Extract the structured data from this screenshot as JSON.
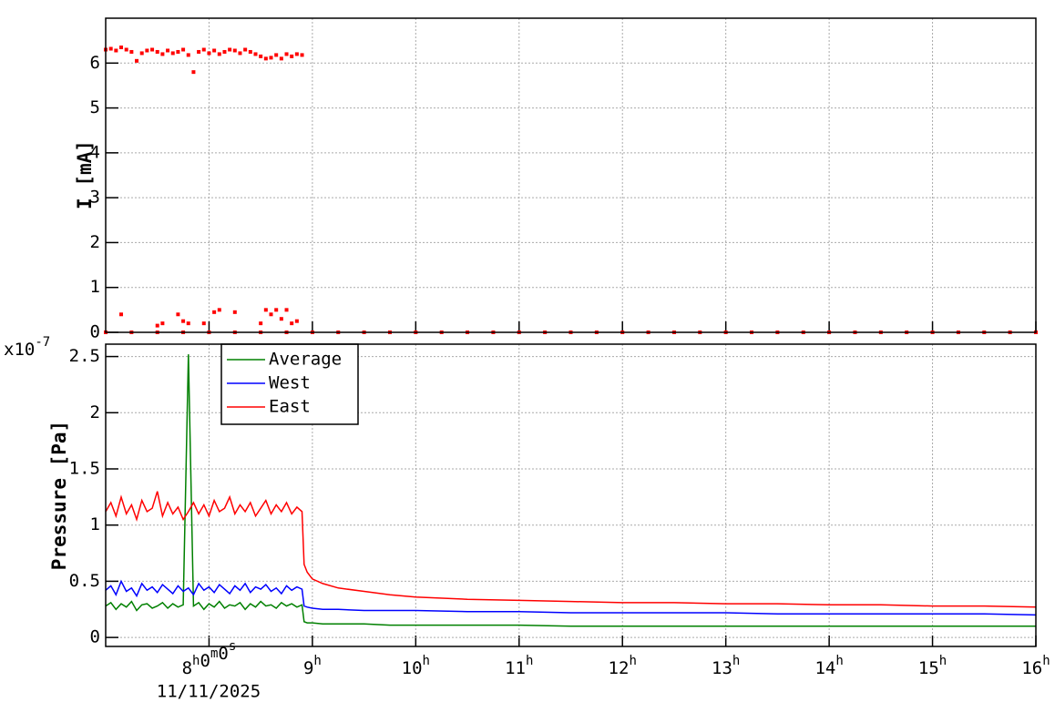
{
  "chart_data": [
    {
      "type": "scatter",
      "y_label": "I [mA]",
      "color": "#ff0000",
      "xlim": [
        7,
        16
      ],
      "xticks": [
        8,
        9,
        10,
        11,
        12,
        13,
        14,
        15,
        16
      ],
      "ylim": [
        0,
        7
      ],
      "yticks": [
        0,
        1,
        2,
        3,
        4,
        5,
        6
      ],
      "grid": true,
      "x": [
        7,
        7.05,
        7.1,
        7.15,
        7.2,
        7.25,
        7.3,
        7.35,
        7.4,
        7.45,
        7.5,
        7.55,
        7.6,
        7.65,
        7.7,
        7.75,
        7.8,
        7.85,
        7.9,
        7.95,
        8,
        8.05,
        8.1,
        8.15,
        8.2,
        8.25,
        8.3,
        8.35,
        8.4,
        8.45,
        8.5,
        8.55,
        8.6,
        8.65,
        8.7,
        8.75,
        8.8,
        8.85,
        8.9,
        7.15,
        7.5,
        7.55,
        7.7,
        7.75,
        7.8,
        7.95,
        8.05,
        8.1,
        8.25,
        8.5,
        8.55,
        8.6,
        8.65,
        8.7,
        8.75,
        8.8,
        8.85,
        7,
        7.25,
        7.5,
        7.75,
        8,
        8.25,
        8.5,
        8.75,
        9,
        9.25,
        9.5,
        9.75,
        10,
        10.25,
        10.5,
        10.75,
        11,
        11.25,
        11.5,
        11.75,
        12,
        12.25,
        12.5,
        12.75,
        13,
        13.25,
        13.5,
        13.75,
        14,
        14.25,
        14.5,
        14.75,
        15,
        15.25,
        15.5,
        15.75,
        16
      ],
      "values": [
        6.3,
        6.32,
        6.28,
        6.35,
        6.3,
        6.25,
        6.05,
        6.22,
        6.28,
        6.3,
        6.25,
        6.2,
        6.28,
        6.22,
        6.25,
        6.3,
        6.18,
        5.8,
        6.25,
        6.3,
        6.22,
        6.28,
        6.2,
        6.25,
        6.3,
        6.28,
        6.22,
        6.3,
        6.25,
        6.2,
        6.15,
        6.1,
        6.12,
        6.18,
        6.1,
        6.2,
        6.15,
        6.2,
        6.18,
        0.4,
        0.15,
        0.2,
        0.4,
        0.25,
        0.2,
        0.2,
        0.45,
        0.5,
        0.45,
        0.2,
        0.5,
        0.4,
        0.5,
        0.3,
        0.5,
        0.2,
        0.25,
        0,
        0,
        0,
        0,
        0,
        0,
        0,
        0,
        0,
        0,
        0,
        0,
        0,
        0,
        0,
        0,
        0,
        0,
        0,
        0,
        0,
        0,
        0,
        0,
        0,
        0,
        0,
        0,
        0,
        0,
        0,
        0,
        0,
        0,
        0,
        0,
        0
      ]
    },
    {
      "type": "line",
      "y_label": "Pressure [Pa]",
      "y_multiplier": "x10-7",
      "date": "11/11/2025",
      "xlim": [
        7,
        16
      ],
      "xticks": [
        {
          "value": 8,
          "label": "8h0m0s"
        },
        {
          "value": 9,
          "label": "9h"
        },
        {
          "value": 10,
          "label": "10h"
        },
        {
          "value": 11,
          "label": "11h"
        },
        {
          "value": 12,
          "label": "12h"
        },
        {
          "value": 13,
          "label": "13h"
        },
        {
          "value": 14,
          "label": "14h"
        },
        {
          "value": 15,
          "label": "15h"
        },
        {
          "value": 16,
          "label": "16h"
        }
      ],
      "ylim": [
        -0.08,
        2.61
      ],
      "yticks": [
        0,
        0.5,
        1,
        1.5,
        2,
        2.5
      ],
      "grid": true,
      "legend": "top-left",
      "x": [
        7,
        7.05,
        7.1,
        7.15,
        7.2,
        7.25,
        7.3,
        7.35,
        7.4,
        7.45,
        7.5,
        7.55,
        7.6,
        7.65,
        7.7,
        7.75,
        7.8,
        7.85,
        7.9,
        7.95,
        8,
        8.05,
        8.1,
        8.15,
        8.2,
        8.25,
        8.3,
        8.35,
        8.4,
        8.45,
        8.5,
        8.55,
        8.6,
        8.65,
        8.7,
        8.75,
        8.8,
        8.85,
        8.9,
        8.92,
        8.95,
        9,
        9.1,
        9.25,
        9.5,
        9.75,
        10,
        10.5,
        11,
        11.5,
        12,
        12.5,
        13,
        13.5,
        14,
        14.5,
        15,
        15.5,
        16
      ],
      "series": [
        {
          "name": "Average",
          "color": "#008000",
          "values": [
            0.28,
            0.31,
            0.25,
            0.3,
            0.27,
            0.32,
            0.24,
            0.29,
            0.3,
            0.26,
            0.28,
            0.31,
            0.26,
            0.3,
            0.27,
            0.29,
            2.52,
            0.28,
            0.31,
            0.25,
            0.3,
            0.27,
            0.32,
            0.26,
            0.29,
            0.28,
            0.31,
            0.25,
            0.3,
            0.27,
            0.32,
            0.28,
            0.29,
            0.26,
            0.31,
            0.28,
            0.3,
            0.27,
            0.29,
            0.14,
            0.13,
            0.13,
            0.12,
            0.12,
            0.12,
            0.11,
            0.11,
            0.11,
            0.11,
            0.1,
            0.1,
            0.1,
            0.1,
            0.1,
            0.1,
            0.1,
            0.1,
            0.1,
            0.1
          ]
        },
        {
          "name": "West",
          "color": "#0000ff",
          "values": [
            0.42,
            0.46,
            0.38,
            0.5,
            0.41,
            0.44,
            0.37,
            0.48,
            0.42,
            0.45,
            0.4,
            0.47,
            0.43,
            0.39,
            0.46,
            0.41,
            0.44,
            0.38,
            0.48,
            0.42,
            0.45,
            0.4,
            0.47,
            0.43,
            0.39,
            0.46,
            0.42,
            0.48,
            0.4,
            0.45,
            0.43,
            0.47,
            0.41,
            0.44,
            0.39,
            0.46,
            0.42,
            0.45,
            0.43,
            0.28,
            0.27,
            0.26,
            0.25,
            0.25,
            0.24,
            0.24,
            0.24,
            0.23,
            0.23,
            0.22,
            0.22,
            0.22,
            0.22,
            0.21,
            0.21,
            0.21,
            0.21,
            0.21,
            0.2
          ]
        },
        {
          "name": "East",
          "color": "#ff0000",
          "values": [
            1.12,
            1.2,
            1.08,
            1.25,
            1.1,
            1.18,
            1.05,
            1.22,
            1.12,
            1.15,
            1.3,
            1.08,
            1.2,
            1.1,
            1.16,
            1.05,
            1.12,
            1.2,
            1.1,
            1.18,
            1.08,
            1.22,
            1.12,
            1.15,
            1.25,
            1.1,
            1.18,
            1.12,
            1.2,
            1.08,
            1.15,
            1.22,
            1.1,
            1.18,
            1.12,
            1.2,
            1.1,
            1.16,
            1.12,
            0.65,
            0.58,
            0.52,
            0.48,
            0.44,
            0.41,
            0.38,
            0.36,
            0.34,
            0.33,
            0.32,
            0.31,
            0.31,
            0.3,
            0.3,
            0.29,
            0.29,
            0.28,
            0.28,
            0.27
          ]
        }
      ]
    }
  ]
}
